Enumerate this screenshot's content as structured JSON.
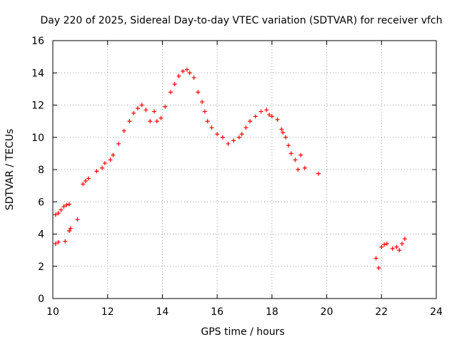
{
  "chart_data": {
    "type": "scatter",
    "title": "Day 220 of 2025, Sidereal Day-to-day VTEC variation (SDTVAR) for receiver vfch",
    "xlabel": "GPS time / hours",
    "ylabel": "SDTVAR / TECUs",
    "xlim": [
      10,
      24
    ],
    "ylim": [
      0,
      16
    ],
    "xticks": [
      10,
      12,
      14,
      16,
      18,
      20,
      22,
      24
    ],
    "yticks": [
      0,
      2,
      4,
      6,
      8,
      10,
      12,
      14,
      16
    ],
    "grid": true,
    "marker": "+",
    "color": "#ff0000",
    "series": [
      {
        "name": "SDTVAR",
        "x": [
          10.1,
          10.2,
          10.3,
          10.4,
          10.5,
          10.6,
          10.1,
          10.2,
          10.45,
          10.6,
          10.65,
          10.9,
          11.1,
          11.2,
          11.3,
          11.6,
          11.8,
          11.9,
          12.1,
          12.2,
          12.4,
          12.6,
          12.8,
          12.95,
          13.1,
          13.25,
          13.4,
          13.55,
          13.7,
          13.8,
          13.95,
          14.1,
          14.3,
          14.45,
          14.6,
          14.75,
          14.9,
          15.0,
          15.15,
          15.3,
          15.45,
          15.55,
          15.65,
          15.8,
          16.0,
          16.2,
          16.4,
          16.6,
          16.8,
          16.9,
          17.05,
          17.2,
          17.4,
          17.6,
          17.8,
          17.9,
          18.0,
          18.2,
          18.35,
          18.4,
          18.5,
          18.6,
          18.7,
          18.85,
          18.95,
          19.05,
          19.2,
          19.7,
          21.8,
          21.9,
          22.0,
          22.1,
          22.2,
          22.4,
          22.55,
          22.65,
          22.75,
          22.85
        ],
        "y": [
          5.2,
          5.3,
          5.5,
          5.7,
          5.8,
          5.85,
          3.4,
          3.5,
          3.55,
          4.2,
          4.35,
          4.9,
          7.1,
          7.3,
          7.45,
          7.9,
          8.1,
          8.4,
          8.6,
          8.9,
          9.6,
          10.4,
          11.0,
          11.5,
          11.8,
          12.0,
          11.7,
          11.0,
          11.6,
          11.0,
          11.2,
          11.9,
          12.8,
          13.3,
          13.8,
          14.1,
          14.2,
          14.0,
          13.7,
          12.8,
          12.2,
          11.6,
          11.0,
          10.6,
          10.2,
          10.0,
          9.6,
          9.8,
          10.0,
          10.2,
          10.6,
          11.0,
          11.3,
          11.6,
          11.7,
          11.4,
          11.3,
          11.1,
          10.5,
          10.3,
          10.0,
          9.5,
          9.0,
          8.6,
          8.0,
          8.9,
          8.1,
          7.75,
          2.5,
          1.9,
          3.2,
          3.35,
          3.4,
          3.1,
          3.2,
          3.0,
          3.4,
          3.7
        ]
      }
    ]
  }
}
